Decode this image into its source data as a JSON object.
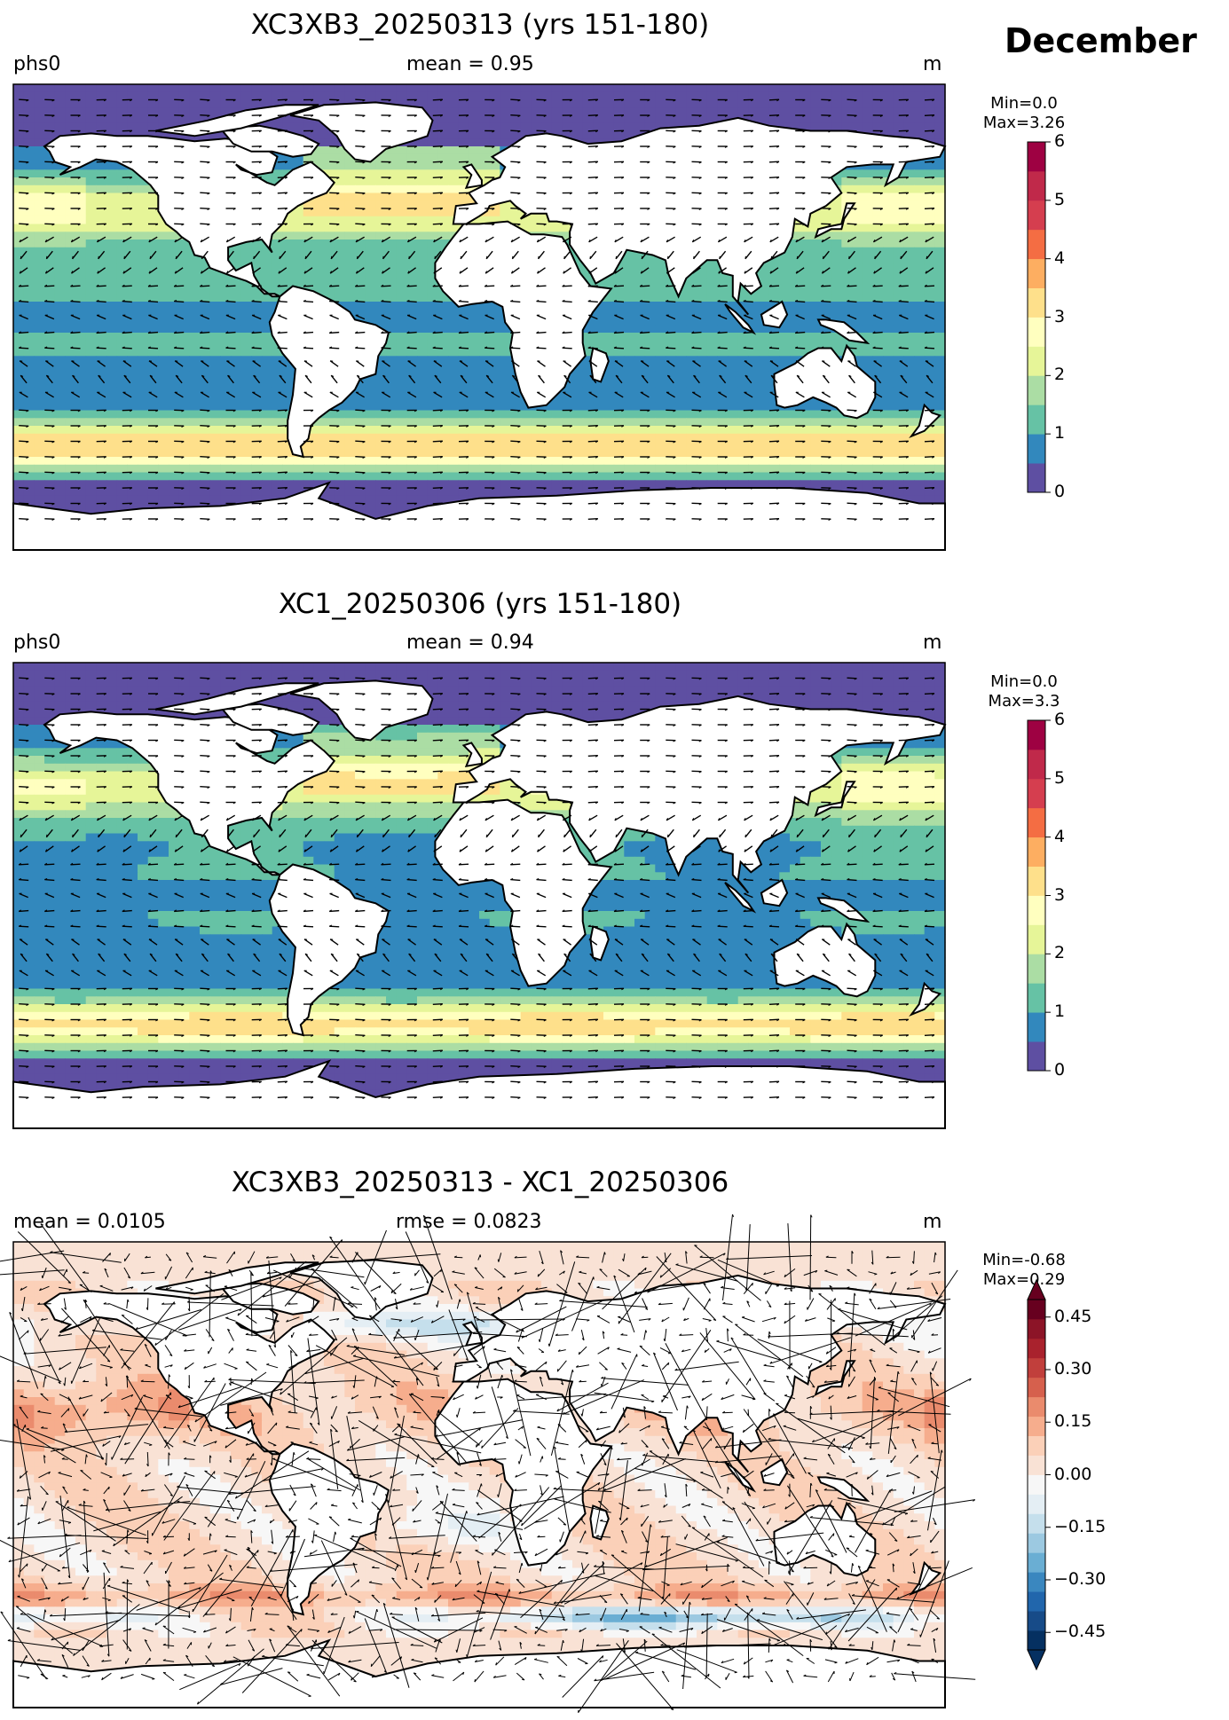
{
  "month_label": "December",
  "chart_data": [
    {
      "type": "heatmap",
      "title": "XC3XB3_20250313 (yrs 151-180)",
      "left_label": "phs0",
      "center_label": "mean = 0.95",
      "units": "m",
      "colorbar": {
        "min_text": "Min=0.0",
        "max_text": "Max=3.26",
        "range": [
          0,
          6
        ],
        "levels": [
          0,
          0.5,
          1,
          1.5,
          2,
          2.5,
          3,
          3.5,
          4,
          4.5,
          5,
          5.5,
          6
        ],
        "ticks": [
          "0",
          "1",
          "2",
          "3",
          "4",
          "5",
          "6"
        ],
        "colors": [
          "#5e4fa2",
          "#3288bd",
          "#66c2a5",
          "#abdda4",
          "#e6f598",
          "#ffffbf",
          "#fee08b",
          "#fdae61",
          "#f46d43",
          "#d53e4f",
          "#c0294a",
          "#9e0142"
        ]
      },
      "vectors": "wave direction arrows"
    },
    {
      "type": "heatmap",
      "title": "XC1_20250306 (yrs 151-180)",
      "left_label": "phs0",
      "center_label": "mean = 0.94",
      "units": "m",
      "colorbar": {
        "min_text": "Min=0.0",
        "max_text": "Max=3.3",
        "range": [
          0,
          6
        ],
        "levels": [
          0,
          0.5,
          1,
          1.5,
          2,
          2.5,
          3,
          3.5,
          4,
          4.5,
          5,
          5.5,
          6
        ],
        "ticks": [
          "0",
          "1",
          "2",
          "3",
          "4",
          "5",
          "6"
        ],
        "colors": [
          "#5e4fa2",
          "#3288bd",
          "#66c2a5",
          "#abdda4",
          "#e6f598",
          "#ffffbf",
          "#fee08b",
          "#fdae61",
          "#f46d43",
          "#d53e4f",
          "#c0294a",
          "#9e0142"
        ]
      },
      "vectors": "wave direction arrows"
    },
    {
      "type": "heatmap",
      "title": "XC3XB3_20250313 - XC1_20250306",
      "left_label": "mean = 0.0105",
      "center_label": "rmse = 0.0823",
      "units": "m",
      "colorbar": {
        "min_text": "Min=-0.68",
        "max_text": "Max=0.29",
        "range": [
          -0.5,
          0.5
        ],
        "extend": "both",
        "ticks": [
          "−0.45",
          "−0.30",
          "−0.15",
          "0.00",
          "0.15",
          "0.30",
          "0.45"
        ],
        "tick_values": [
          -0.45,
          -0.3,
          -0.15,
          0,
          0.15,
          0.3,
          0.45
        ],
        "colors": [
          "#053061",
          "#174b88",
          "#2166ac",
          "#3a87bf",
          "#6aaed3",
          "#9cc9e1",
          "#c5dfec",
          "#e4eef4",
          "#f7f7f7",
          "#f9e2d5",
          "#fbd0b8",
          "#f6ad8d",
          "#ea8b6d",
          "#d6604d",
          "#c13f3c",
          "#a9222d",
          "#8c1427",
          "#67001f"
        ]
      },
      "vectors": "difference arrows"
    }
  ]
}
